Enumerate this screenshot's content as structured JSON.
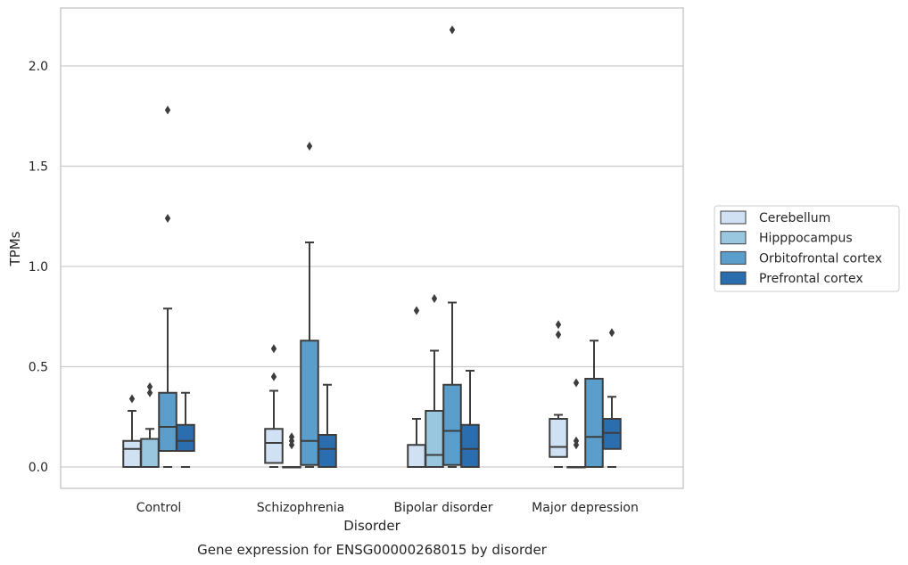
{
  "chart_data": {
    "type": "box",
    "title": "",
    "caption": "Gene expression for ENSG00000268015 by disorder",
    "xlabel": "Disorder",
    "ylabel": "TPMs",
    "ylim": [
      -0.1,
      2.3
    ],
    "yticks": [
      0.0,
      0.5,
      1.0,
      1.5,
      2.0
    ],
    "ytick_labels": [
      "0.0",
      "0.5",
      "1.0",
      "1.5",
      "2.0"
    ],
    "grid": "horizontal",
    "legend_position": "right",
    "categories": [
      "Control",
      "Schizophrenia",
      "Bipolar disorder",
      "Major depression"
    ],
    "series": [
      {
        "name": "Cerebellum",
        "color": "#cfe1f2",
        "boxes": [
          {
            "whisker_low": 0.0,
            "q1": 0.0,
            "median": 0.09,
            "q3": 0.13,
            "whisker_high": 0.28,
            "outliers": [
              0.34
            ]
          },
          {
            "whisker_low": 0.0,
            "q1": 0.02,
            "median": 0.12,
            "q3": 0.19,
            "whisker_high": 0.38,
            "outliers": [
              0.45,
              0.59
            ]
          },
          {
            "whisker_low": 0.0,
            "q1": 0.0,
            "median": 0.0,
            "q3": 0.11,
            "whisker_high": 0.24,
            "outliers": [
              0.78
            ]
          },
          {
            "whisker_low": 0.0,
            "q1": 0.05,
            "median": 0.1,
            "q3": 0.24,
            "whisker_high": 0.26,
            "outliers": [
              0.66,
              0.71
            ]
          }
        ]
      },
      {
        "name": "Hipppocampus",
        "color": "#9ac7e0",
        "boxes": [
          {
            "whisker_low": 0.0,
            "q1": 0.0,
            "median": 0.0,
            "q3": 0.14,
            "whisker_high": 0.19,
            "outliers": [
              0.37,
              0.4
            ]
          },
          {
            "whisker_low": 0.0,
            "q1": 0.0,
            "median": 0.0,
            "q3": 0.0,
            "whisker_high": 0.0,
            "outliers": [
              0.11,
              0.13,
              0.15
            ]
          },
          {
            "whisker_low": 0.0,
            "q1": 0.0,
            "median": 0.06,
            "q3": 0.28,
            "whisker_high": 0.58,
            "outliers": [
              0.84
            ]
          },
          {
            "whisker_low": 0.0,
            "q1": 0.0,
            "median": 0.0,
            "q3": 0.0,
            "whisker_high": 0.0,
            "outliers": [
              0.11,
              0.13,
              0.42
            ]
          }
        ]
      },
      {
        "name": "Orbitofrontal cortex",
        "color": "#5b9ecb",
        "boxes": [
          {
            "whisker_low": 0.0,
            "q1": 0.08,
            "median": 0.2,
            "q3": 0.37,
            "whisker_high": 0.79,
            "outliers": [
              1.24,
              1.78
            ]
          },
          {
            "whisker_low": 0.0,
            "q1": 0.01,
            "median": 0.13,
            "q3": 0.63,
            "whisker_high": 1.12,
            "outliers": [
              1.6
            ]
          },
          {
            "whisker_low": 0.0,
            "q1": 0.01,
            "median": 0.18,
            "q3": 0.41,
            "whisker_high": 0.82,
            "outliers": [
              2.18
            ]
          },
          {
            "whisker_low": 0.0,
            "q1": 0.0,
            "median": 0.15,
            "q3": 0.44,
            "whisker_high": 0.63,
            "outliers": []
          }
        ]
      },
      {
        "name": "Prefrontal cortex",
        "color": "#2b6eaf",
        "boxes": [
          {
            "whisker_low": 0.0,
            "q1": 0.08,
            "median": 0.13,
            "q3": 0.21,
            "whisker_high": 0.37,
            "outliers": []
          },
          {
            "whisker_low": 0.0,
            "q1": 0.0,
            "median": 0.09,
            "q3": 0.16,
            "whisker_high": 0.41,
            "outliers": []
          },
          {
            "whisker_low": 0.0,
            "q1": 0.0,
            "median": 0.09,
            "q3": 0.21,
            "whisker_high": 0.48,
            "outliers": []
          },
          {
            "whisker_low": 0.0,
            "q1": 0.09,
            "median": 0.17,
            "q3": 0.24,
            "whisker_high": 0.35,
            "outliers": [
              0.67
            ]
          }
        ]
      }
    ]
  }
}
